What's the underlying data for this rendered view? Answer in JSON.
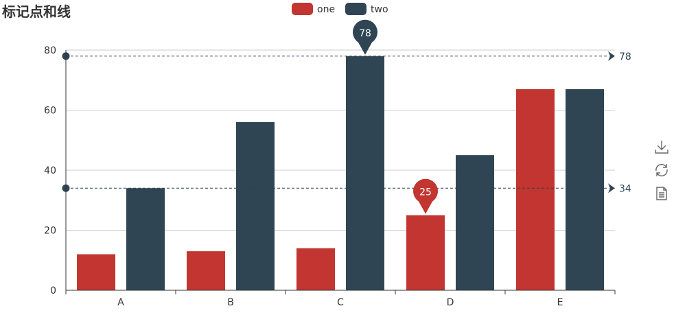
{
  "title": "标记点和线",
  "colors": {
    "one": "#c23531",
    "two": "#2f4554",
    "axis": "#333333",
    "grid": "#cccccc",
    "tool": "#666666"
  },
  "toolbox": {
    "items": [
      {
        "name": "save-as-image",
        "icon": "download-icon"
      },
      {
        "name": "restore",
        "icon": "refresh-icon"
      },
      {
        "name": "data-view",
        "icon": "document-icon"
      }
    ]
  },
  "chart_data": {
    "type": "bar",
    "categories": [
      "A",
      "B",
      "C",
      "D",
      "E"
    ],
    "series": [
      {
        "name": "one",
        "values": [
          12,
          13,
          14,
          25,
          67
        ],
        "color": "#c23531"
      },
      {
        "name": "two",
        "values": [
          34,
          56,
          78,
          45,
          67
        ],
        "color": "#2f4554"
      }
    ],
    "ylim": [
      0,
      80
    ],
    "yticks": [
      0,
      20,
      40,
      60,
      80
    ],
    "grid": true,
    "legend_position": "top-center",
    "mark_points": [
      {
        "series": "two",
        "category": "C",
        "value": 78
      },
      {
        "series": "one",
        "category": "D",
        "value": 25
      }
    ],
    "mark_lines": [
      {
        "series": "two",
        "value": 78,
        "label": "78"
      },
      {
        "series": "two",
        "value": 34,
        "label": "34"
      }
    ]
  }
}
